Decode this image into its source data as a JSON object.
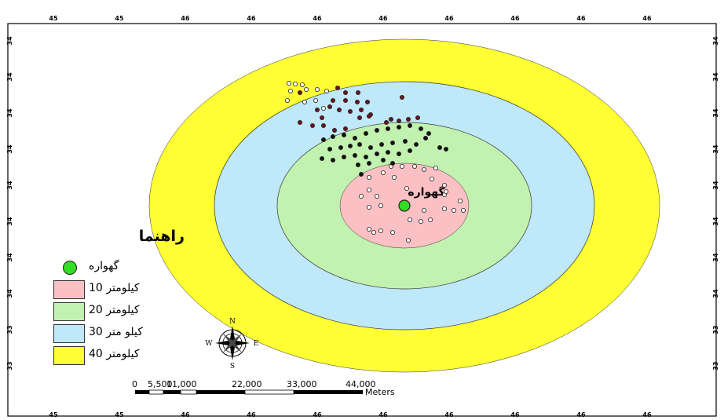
{
  "map": {
    "center_label": "گهواره",
    "ring_colors": {
      "km40": "#ffff33",
      "km30": "#bfe8f8",
      "km20": "#c2f2b0",
      "km10": "#fbc0c4",
      "center": "#33dd22",
      "dot_dark": "#111111",
      "dot_maroon": "#6a1420",
      "dot_open": "#ffffff"
    }
  },
  "legend": {
    "title": "راهنما",
    "items": [
      {
        "label": "گهواره",
        "kind": "point",
        "color": "#33dd22"
      },
      {
        "label": "کیلومتر 10",
        "kind": "area",
        "color": "#fbc0c4"
      },
      {
        "label": "کیلومتر 20",
        "kind": "area",
        "color": "#c2f2b0"
      },
      {
        "label": "کیلو متر 30",
        "kind": "area",
        "color": "#bfe8f8"
      },
      {
        "label": "کیلومتر 40",
        "kind": "area",
        "color": "#ffff33"
      }
    ]
  },
  "north_arrow": {
    "n": "N",
    "s": "S",
    "e": "E",
    "w": "W"
  },
  "scale_bar": {
    "ticks": [
      "0",
      "5,500",
      "11,000",
      "22,000",
      "33,000",
      "44,000"
    ],
    "unit": "Meters"
  },
  "graticule": {
    "top_labels": [
      "45",
      "45",
      "46",
      "46",
      "46",
      "46",
      "46",
      "46",
      "46",
      "46"
    ],
    "bottom_labels": [
      "45",
      "45",
      "46",
      "46",
      "46",
      "46",
      "46",
      "46",
      "46",
      "46"
    ],
    "left_labels": [
      "34",
      "34",
      "34",
      "34",
      "34",
      "34",
      "34",
      "34",
      "33",
      "33"
    ],
    "right_labels": [
      "34",
      "34",
      "34",
      "34",
      "34",
      "34",
      "34",
      "34",
      "33",
      "33"
    ]
  }
}
